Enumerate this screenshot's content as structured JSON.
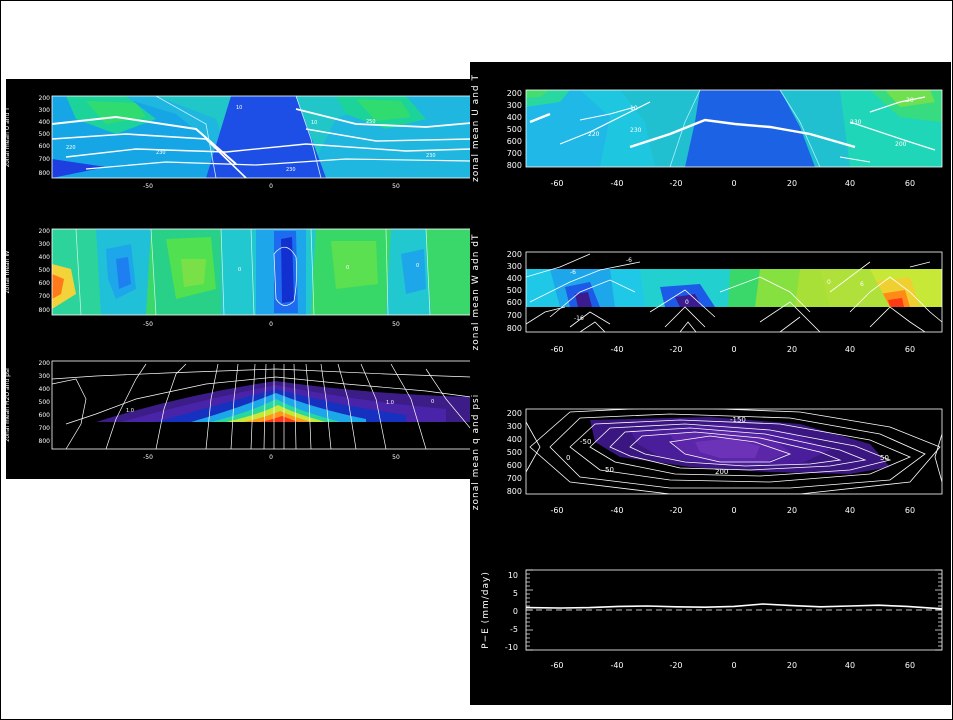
{
  "left_panels": {
    "panel1": {
      "ylabel": "zonal mean U and T",
      "yticks": [
        "200",
        "300",
        "400",
        "500",
        "600",
        "700",
        "800"
      ],
      "xticks": [
        "-50",
        "0",
        "50"
      ],
      "labels": [
        "220",
        "230",
        "250",
        "230",
        "230",
        "10",
        "10"
      ]
    },
    "panel2": {
      "ylabel": "zonal mean W",
      "yticks": [
        "200",
        "300",
        "400",
        "500",
        "600",
        "700",
        "800"
      ],
      "xticks": [
        "-50",
        "0",
        "50"
      ],
      "labels": [
        "0",
        "0",
        "0"
      ]
    },
    "panel3": {
      "ylabel": "zonal mean H2O and psi",
      "yticks": [
        "200",
        "300",
        "400",
        "500",
        "600",
        "700",
        "800"
      ],
      "xticks": [
        "-50",
        "0",
        "50"
      ],
      "labels": [
        "1.0",
        "1.0",
        "0"
      ]
    }
  },
  "right_panels": {
    "panel1": {
      "ylabel": "zonal mean U and T",
      "yticks": [
        "200",
        "300",
        "400",
        "500",
        "600",
        "700",
        "800"
      ],
      "xticks": [
        "-60",
        "-40",
        "-20",
        "0",
        "20",
        "40",
        "60"
      ],
      "labels": [
        "10",
        "220",
        "230",
        "230",
        "200",
        "20"
      ]
    },
    "panel2": {
      "ylabel": "zonal mean W adn dT",
      "yticks": [
        "200",
        "300",
        "400",
        "500",
        "600",
        "700",
        "800"
      ],
      "xticks": [
        "-60",
        "-40",
        "-20",
        "0",
        "20",
        "40",
        "60"
      ],
      "labels": [
        "-6",
        "-16",
        "0",
        "-6",
        "0",
        "6"
      ]
    },
    "panel3": {
      "ylabel": "zonal mean q and psi",
      "yticks": [
        "200",
        "300",
        "400",
        "500",
        "600",
        "700",
        "800"
      ],
      "xticks": [
        "-60",
        "-40",
        "-20",
        "0",
        "20",
        "40",
        "60"
      ],
      "labels": [
        "-150",
        "-50",
        "0",
        "50",
        "200",
        "50"
      ]
    },
    "panel4": {
      "ylabel": "P−E (mm/day)",
      "yticks": [
        "10",
        "5",
        "0",
        "-5",
        "-10"
      ],
      "xticks": [
        "-60",
        "-40",
        "-20",
        "0",
        "20",
        "40",
        "60"
      ]
    }
  },
  "chart_data": [
    {
      "type": "heatmap",
      "title": "",
      "ylabel": "zonal mean U and T",
      "x_ticks": [
        "-50",
        "0",
        "50"
      ],
      "y_ticks": [
        "200",
        "300",
        "400",
        "500",
        "600",
        "700",
        "800"
      ]
    },
    {
      "type": "heatmap",
      "title": "",
      "ylabel": "zonal mean W",
      "x_ticks": [
        "-50",
        "0",
        "50"
      ],
      "y_ticks": [
        "200",
        "300",
        "400",
        "500",
        "600",
        "700",
        "800"
      ]
    },
    {
      "type": "heatmap",
      "title": "",
      "ylabel": "zonal mean H2O and psi",
      "x_ticks": [
        "-50",
        "0",
        "50"
      ],
      "y_ticks": [
        "200",
        "300",
        "400",
        "500",
        "600",
        "700",
        "800"
      ]
    },
    {
      "type": "heatmap",
      "title": "",
      "ylabel": "zonal mean U and T",
      "x_ticks": [
        "-60",
        "-40",
        "-20",
        "0",
        "20",
        "40",
        "60"
      ],
      "y_ticks": [
        "200",
        "300",
        "400",
        "500",
        "600",
        "700",
        "800"
      ]
    },
    {
      "type": "heatmap",
      "title": "",
      "ylabel": "zonal mean W adn dT",
      "x_ticks": [
        "-60",
        "-40",
        "-20",
        "0",
        "20",
        "40",
        "60"
      ],
      "y_ticks": [
        "200",
        "300",
        "400",
        "500",
        "600",
        "700",
        "800"
      ]
    },
    {
      "type": "heatmap",
      "title": "",
      "ylabel": "zonal mean q and psi",
      "x_ticks": [
        "-60",
        "-40",
        "-20",
        "0",
        "20",
        "40",
        "60"
      ],
      "y_ticks": [
        "200",
        "300",
        "400",
        "500",
        "600",
        "700",
        "800"
      ]
    },
    {
      "type": "line",
      "title": "",
      "ylabel": "P−E (mm/day)",
      "xlim": [
        -72,
        72
      ],
      "ylim": [
        -10,
        10
      ],
      "x": [
        -72,
        -60,
        -50,
        -40,
        -30,
        -20,
        -10,
        0,
        10,
        20,
        30,
        40,
        50,
        60,
        72
      ],
      "series": [
        {
          "values": [
            0.6,
            0.5,
            0.6,
            0.9,
            1.0,
            0.8,
            0.7,
            0.9,
            1.5,
            1.1,
            0.8,
            1.0,
            1.2,
            0.9,
            0.3
          ]
        }
      ]
    }
  ]
}
